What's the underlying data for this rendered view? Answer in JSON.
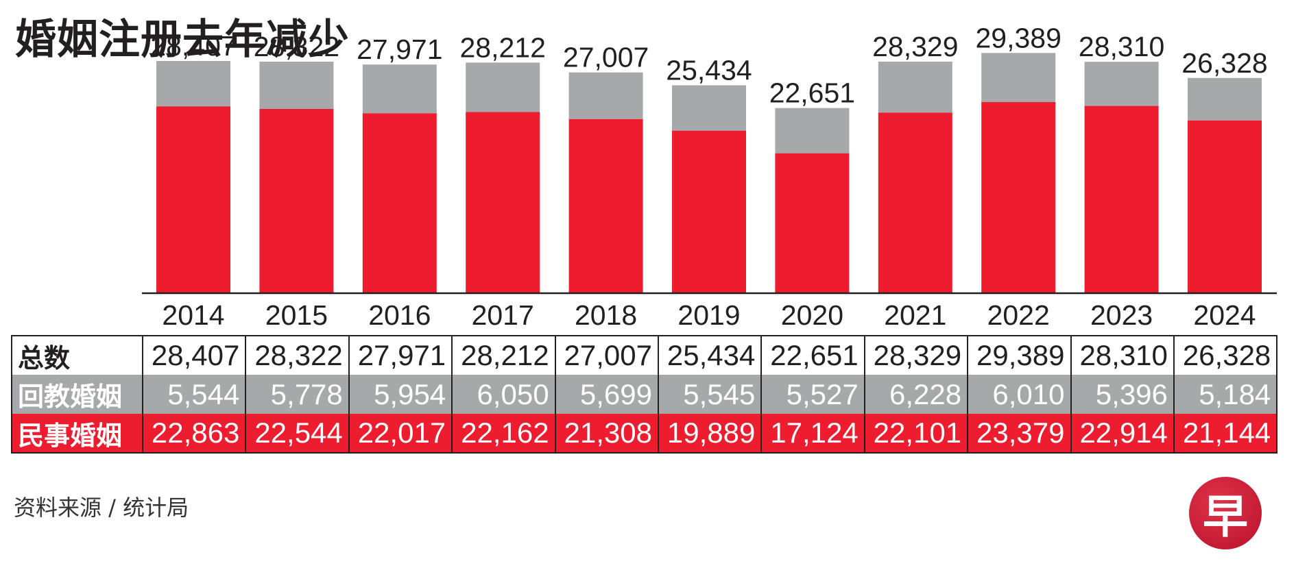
{
  "title": "婚姻注册去年减少",
  "source": "资料来源 / 统计局",
  "logo_text": "早",
  "colors": {
    "muslim": "#a7a8aa",
    "civil": "#ed1c2e",
    "axis": "#231f20",
    "text": "#231f20"
  },
  "chart_data": {
    "type": "bar",
    "stacked": true,
    "title": "婚姻注册去年减少",
    "xlabel": "",
    "ylabel": "",
    "ylim": [
      0,
      30000
    ],
    "grid": false,
    "categories": [
      "2014",
      "2015",
      "2016",
      "2017",
      "2018",
      "2019",
      "2020",
      "2021",
      "2022",
      "2023",
      "2024"
    ],
    "totals": [
      28407,
      28322,
      27971,
      28212,
      27007,
      25434,
      22651,
      28329,
      29389,
      28310,
      26328
    ],
    "series": [
      {
        "name": "民事婚姻",
        "color": "#ed1c2e",
        "values": [
          22863,
          22544,
          22017,
          22162,
          21308,
          19889,
          17124,
          22101,
          23379,
          22914,
          21144
        ]
      },
      {
        "name": "回教婚姻",
        "color": "#a7a8aa",
        "values": [
          5544,
          5778,
          5954,
          6050,
          5699,
          5545,
          5527,
          6228,
          6010,
          5396,
          5184
        ]
      }
    ]
  },
  "table": {
    "row_labels": [
      "总数",
      "回教婚姻",
      "民事婚姻"
    ]
  }
}
